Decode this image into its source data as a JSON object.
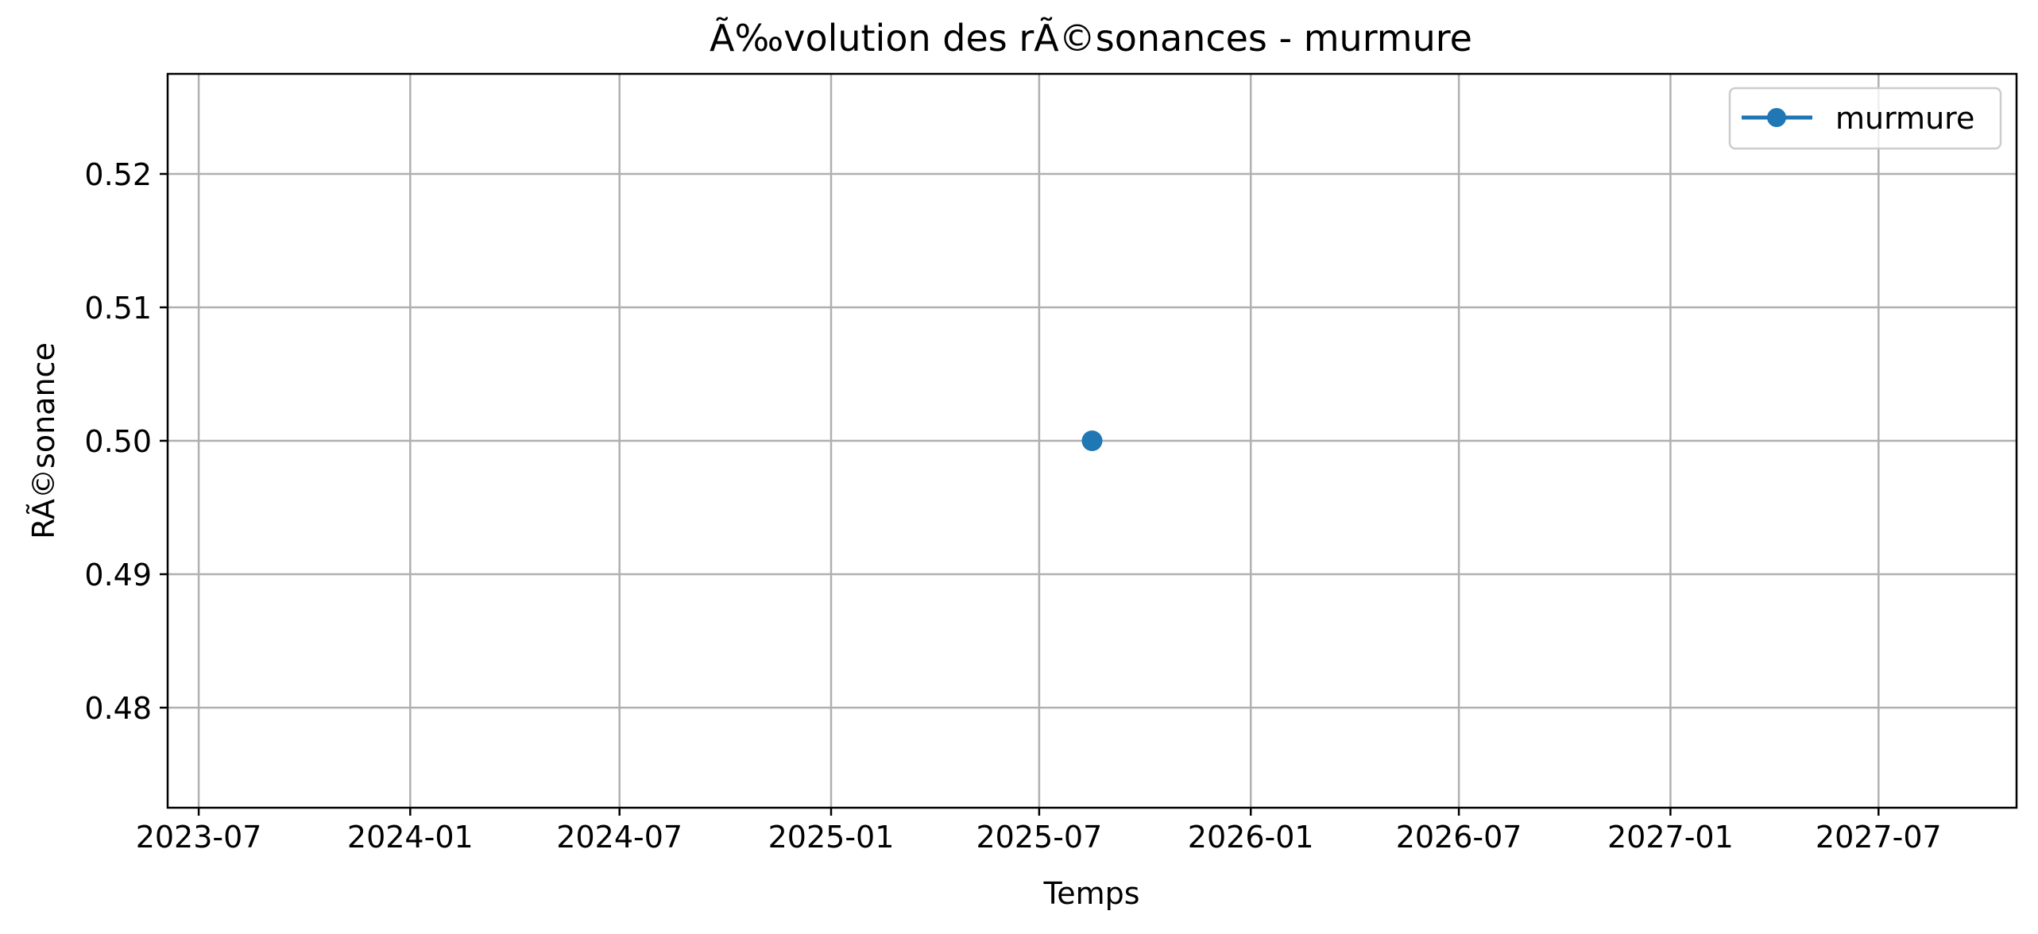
{
  "chart_data": {
    "type": "line",
    "title": "Ã‰volution des rÃ©sonances - murmure",
    "xlabel": "Temps",
    "ylabel": "RÃ©sonance",
    "x_axis_type": "date",
    "xlim": [
      "2023-06-04",
      "2027-10-29"
    ],
    "ylim": [
      0.4725,
      0.5275
    ],
    "x_ticks": [
      "2023-07-01",
      "2024-01-01",
      "2024-07-01",
      "2025-01-01",
      "2025-07-01",
      "2026-01-01",
      "2026-07-01",
      "2027-01-01",
      "2027-07-01"
    ],
    "x_tick_labels": [
      "2023-07",
      "2024-01",
      "2024-07",
      "2025-01",
      "2025-07",
      "2026-01",
      "2026-07",
      "2027-01",
      "2027-07"
    ],
    "y_ticks": [
      0.48,
      0.49,
      0.5,
      0.51,
      0.52
    ],
    "y_tick_labels": [
      "0.48",
      "0.49",
      "0.50",
      "0.51",
      "0.52"
    ],
    "grid": true,
    "legend_position": "top-right",
    "series": [
      {
        "name": "murmure",
        "color": "#1f77b4",
        "marker": "circle",
        "points": [
          {
            "x": "2025-08-16",
            "y": 0.5
          }
        ]
      }
    ]
  }
}
